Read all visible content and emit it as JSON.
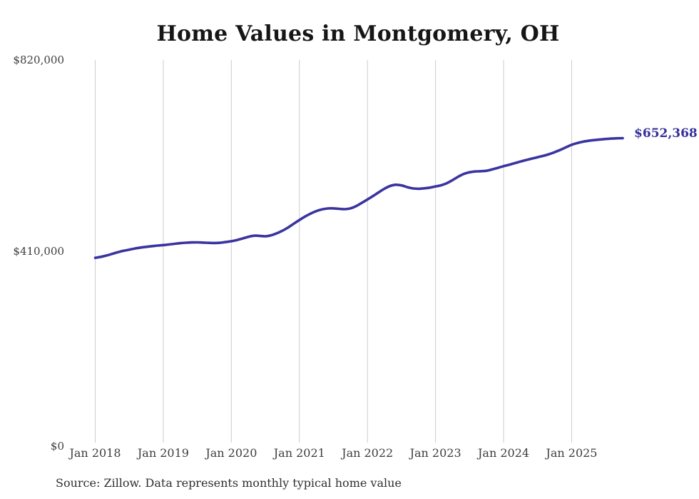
{
  "title": "Home Values in Montgomery, OH",
  "source_note": "Source: Zillow. Data represents monthly typical home value",
  "colors": {
    "line": "#3a34a0",
    "annotation": "#332e9b",
    "grid": "#cccccc",
    "axis_text": "#3d3d3d",
    "title_text": "#161616",
    "source_text": "#2f2f2f",
    "background": "#ffffff"
  },
  "chart_data": {
    "type": "line",
    "title": "Home Values in Montgomery, OH",
    "xlabel": "",
    "ylabel": "",
    "ylim": [
      0,
      820000
    ],
    "grid": "vertical-only",
    "legend": "none",
    "line_smoothing": true,
    "y_ticks": [
      {
        "label": "$0",
        "value": 0
      },
      {
        "label": "$410,000",
        "value": 410000
      },
      {
        "label": "$820,000",
        "value": 820000
      }
    ],
    "x_ticks": [
      {
        "label": "Jan 2018",
        "month_index": 0
      },
      {
        "label": "Jan 2019",
        "month_index": 12
      },
      {
        "label": "Jan 2020",
        "month_index": 24
      },
      {
        "label": "Jan 2021",
        "month_index": 36
      },
      {
        "label": "Jan 2022",
        "month_index": 48
      },
      {
        "label": "Jan 2023",
        "month_index": 60
      },
      {
        "label": "Jan 2024",
        "month_index": 72
      },
      {
        "label": "Jan 2025",
        "month_index": 84
      }
    ],
    "annotation": {
      "label": "$652,368",
      "at": "last-point"
    },
    "x": [
      "2018-01",
      "2018-02",
      "2018-03",
      "2018-04",
      "2018-05",
      "2018-06",
      "2018-07",
      "2018-08",
      "2018-09",
      "2018-10",
      "2018-11",
      "2018-12",
      "2019-01",
      "2019-02",
      "2019-03",
      "2019-04",
      "2019-05",
      "2019-06",
      "2019-07",
      "2019-08",
      "2019-09",
      "2019-10",
      "2019-11",
      "2019-12",
      "2020-01",
      "2020-02",
      "2020-03",
      "2020-04",
      "2020-05",
      "2020-06",
      "2020-07",
      "2020-08",
      "2020-09",
      "2020-10",
      "2020-11",
      "2020-12",
      "2021-01",
      "2021-02",
      "2021-03",
      "2021-04",
      "2021-05",
      "2021-06",
      "2021-07",
      "2021-08",
      "2021-09",
      "2021-10",
      "2021-11",
      "2021-12",
      "2022-01",
      "2022-02",
      "2022-03",
      "2022-04",
      "2022-05",
      "2022-06",
      "2022-07",
      "2022-08",
      "2022-09",
      "2022-10",
      "2022-11",
      "2022-12",
      "2023-01",
      "2023-02",
      "2023-03",
      "2023-04",
      "2023-05",
      "2023-06",
      "2023-07",
      "2023-08",
      "2023-09",
      "2023-10",
      "2023-11",
      "2023-12",
      "2024-01",
      "2024-02",
      "2024-03",
      "2024-04",
      "2024-05",
      "2024-06",
      "2024-07",
      "2024-08",
      "2024-09",
      "2024-10",
      "2024-11",
      "2024-12",
      "2025-01",
      "2025-02",
      "2025-03",
      "2025-04",
      "2025-05",
      "2025-06",
      "2025-07",
      "2025-08",
      "2025-09",
      "2025-10"
    ],
    "values": [
      396000,
      398000,
      401000,
      404500,
      408000,
      411000,
      413500,
      416000,
      418000,
      419500,
      421000,
      422200,
      423300,
      424600,
      426000,
      427400,
      428400,
      429000,
      429100,
      428700,
      428100,
      427700,
      428200,
      429800,
      431500,
      434200,
      437600,
      441000,
      443400,
      443100,
      442200,
      444300,
      448500,
      454000,
      461000,
      469000,
      477000,
      484500,
      491000,
      496200,
      499800,
      501800,
      502000,
      501000,
      500200,
      502000,
      506800,
      513800,
      521000,
      528500,
      536500,
      544200,
      550000,
      552600,
      551200,
      547600,
      544800,
      544000,
      545000,
      546500,
      549000,
      551500,
      556000,
      562500,
      569800,
      575800,
      579300,
      581000,
      581600,
      582600,
      585400,
      588900,
      592300,
      595600,
      599000,
      602400,
      605600,
      608700,
      611600,
      614600,
      618000,
      622400,
      627400,
      632900,
      638200,
      642000,
      644800,
      646800,
      648300,
      649500,
      650600,
      651500,
      652100,
      652368
    ]
  }
}
